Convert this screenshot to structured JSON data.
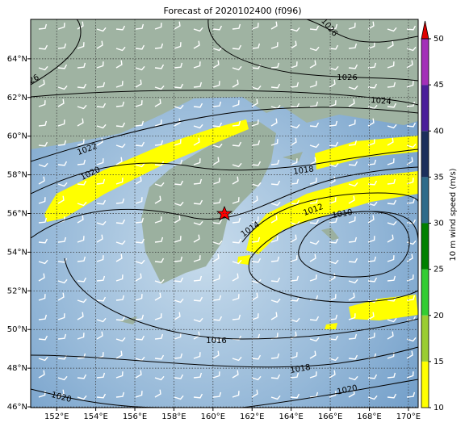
{
  "map": {
    "title": "Forecast of 2020102400 (f096)",
    "lon_extent": [
      150.67,
      170.5
    ],
    "lat_extent": [
      45.96,
      66.04
    ],
    "lon_ticks": [
      {
        "value": 152,
        "label": "152°E"
      },
      {
        "value": 154,
        "label": "154°E"
      },
      {
        "value": 156,
        "label": "156°E"
      },
      {
        "value": 158,
        "label": "158°E"
      },
      {
        "value": 160,
        "label": "160°E"
      },
      {
        "value": 162,
        "label": "162°E"
      },
      {
        "value": 164,
        "label": "164°E"
      },
      {
        "value": 166,
        "label": "166°E"
      },
      {
        "value": 168,
        "label": "168°E"
      },
      {
        "value": 170,
        "label": "170°E"
      }
    ],
    "lat_ticks": [
      {
        "value": 46,
        "label": "46°N"
      },
      {
        "value": 48,
        "label": "48°N"
      },
      {
        "value": 50,
        "label": "50°N"
      },
      {
        "value": 52,
        "label": "52°N"
      },
      {
        "value": 54,
        "label": "54°N"
      },
      {
        "value": 56,
        "label": "56°N"
      },
      {
        "value": 58,
        "label": "58°N"
      },
      {
        "value": 60,
        "label": "60°N"
      },
      {
        "value": 62,
        "label": "62°N"
      },
      {
        "value": 64,
        "label": "64°N"
      }
    ],
    "contour_labels": [
      "1026",
      "1026",
      "1024",
      "1022",
      "1020",
      "1018",
      "1016",
      "1014",
      "1012",
      "1010",
      "1018",
      "1020",
      "1020",
      "26"
    ],
    "colorbar": {
      "label": "10 m wind speed (m/s)",
      "ticks": [
        10,
        15,
        20,
        25,
        30,
        35,
        40,
        45,
        50
      ],
      "colors": [
        "#ffff00",
        "#9acd32",
        "#32cd32",
        "#008000",
        "#2e6b8a",
        "#1c2f5c",
        "#4b1f9a",
        "#a32fb8"
      ],
      "extend_color": "#e00000"
    }
  }
}
